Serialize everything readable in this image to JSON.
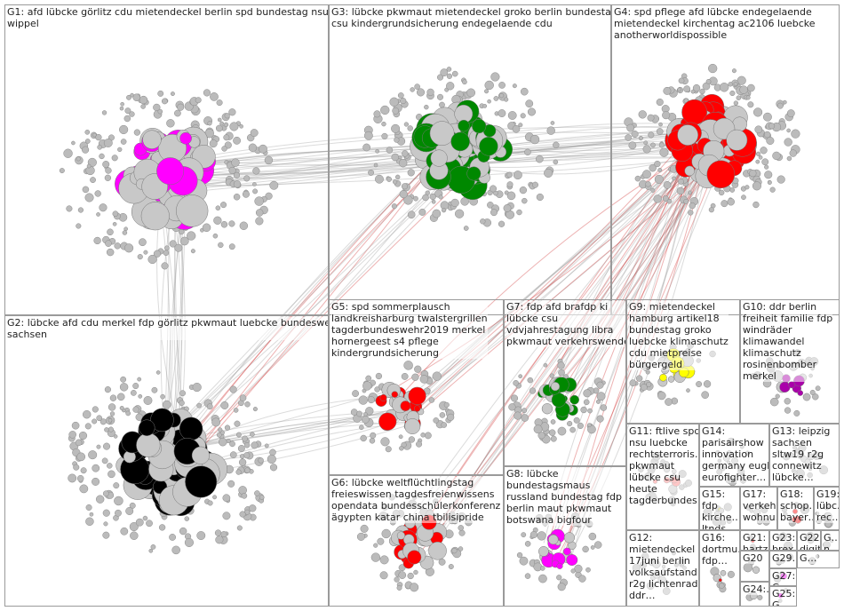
{
  "groups": [
    {
      "lines": [
        "G1: afd lübcke görlitz cdu mietendeckel berlin spd bundestag nsu",
        "wippel"
      ]
    },
    {
      "lines": [
        "G3: lübcke pkwmaut mietendeckel groko berlin bundestag",
        "csu kindergrundsicherung endegelaende cdu"
      ]
    },
    {
      "lines": [
        "G4: spd pflege afd lübcke endegelaende",
        "mietendeckel kirchentag ac2106 luebcke",
        "anotherworldispossible"
      ]
    },
    {
      "lines": [
        "G2: lübcke afd cdu merkel fdp görlitz pkwmaut luebcke bundeswehr",
        "sachsen"
      ]
    },
    {
      "lines": [
        "G5: spd sommerplausch",
        "landkreisharburg twalstergrillen",
        "tagderbundeswehr2019 merkel",
        "hornergeest s4 pflege",
        "kindergrundsicherung"
      ]
    },
    {
      "lines": [
        "G7: fdp afd brafdp ki",
        "lübcke csu",
        "vdvjahrestagung libra",
        "pkwmaut verkehrswende"
      ]
    },
    {
      "lines": [
        "G9: mietendeckel",
        "hamburg artikel18",
        "bundestag groko",
        "luebcke klimaschutz",
        "cdu mietpreise",
        "bürgergeld"
      ]
    },
    {
      "lines": [
        "G10: ddr berlin",
        "freiheit familie fdp",
        "windräder",
        "klimawandel",
        "klimaschutz",
        "rosinenbomber",
        "merkel"
      ]
    },
    {
      "lines": [
        "G6: lübcke weltflüchtlingstag",
        "freieswissen tagdesfreienwissens",
        "opendata bundesschülerkonferenz",
        "ägypten katar china tbilisipride"
      ]
    },
    {
      "lines": [
        "G8: lübcke",
        "bundestagsmaus",
        "russland bundestag fdp",
        "berlin maut pkwmaut",
        "botswana bigfour"
      ]
    },
    {
      "lines": [
        "G11: ftlive spd",
        "nsu luebcke",
        "rechtsterroris…",
        "pkwmaut",
        "lübcke csu",
        "heute",
        "tagderbundes…"
      ]
    },
    {
      "lines": [
        "G14:",
        "parisairshow",
        "innovation",
        "germany eugh",
        "eurofighter…"
      ]
    },
    {
      "lines": [
        "G13: leipzig",
        "sachsen",
        "sltw19 r2g",
        "connewitz",
        "lübcke…"
      ]
    },
    {
      "lines": [
        "G12:",
        "mietendeckel",
        "17juni berlin",
        "volksaufstand",
        "r2g lichtenrade",
        "ddr…"
      ]
    },
    {
      "lines": [
        "G15:",
        "fdp",
        "kirche…",
        "ltnds",
        "europa…"
      ]
    },
    {
      "lines": [
        "G17:",
        "verkeh…",
        "wohnu…"
      ]
    },
    {
      "lines": [
        "G18:",
        "schop…",
        "bayer…"
      ]
    },
    {
      "lines": [
        "G19:",
        "lübc…",
        "rec…"
      ]
    },
    {
      "lines": [
        "G16:",
        "dortmu…",
        "fdp…"
      ]
    },
    {
      "lines": [
        "G21:",
        "hartzi…"
      ]
    },
    {
      "lines": [
        "G23:",
        "brex…"
      ]
    },
    {
      "lines": [
        "G22:",
        "digit…"
      ]
    },
    {
      "lines": [
        "G…",
        "n…"
      ]
    },
    {
      "lines": [
        "G20"
      ]
    },
    {
      "lines": [
        "G29…"
      ]
    },
    {
      "lines": [
        "G…"
      ]
    },
    {
      "lines": [
        "G24:…"
      ]
    },
    {
      "lines": [
        "G27:",
        "G…"
      ]
    },
    {
      "lines": [
        "G25:",
        "G…"
      ]
    }
  ]
}
